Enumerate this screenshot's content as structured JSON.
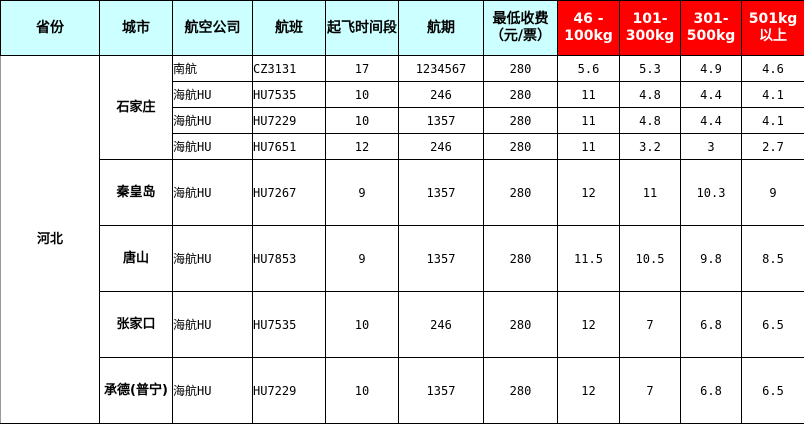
{
  "headers": [
    "省份",
    "城市",
    "航空公司",
    "航班",
    "起飞时间段",
    "航期",
    "最低收费（元/票）",
    "46 - 100kg",
    "101-300kg",
    "301-500kg",
    "501kg以上"
  ],
  "header_colors": {
    "normal": "#ccffff",
    "weight": "#ff0000"
  },
  "province": "河北",
  "cities": [
    {
      "name": "石家庄",
      "flights": [
        [
          "南航",
          "CZ3131",
          "17",
          "1234567",
          "280",
          "5.6",
          "5.3",
          "4.9",
          "4.6"
        ],
        [
          "海航HU",
          "HU7535",
          "10",
          "246",
          "280",
          "11",
          "4.8",
          "4.4",
          "4.1"
        ],
        [
          "海航HU",
          "HU7229",
          "10",
          "1357",
          "280",
          "11",
          "4.8",
          "4.4",
          "4.1"
        ],
        [
          "海航HU",
          "HU7651",
          "12",
          "246",
          "280",
          "11",
          "3.2",
          "3",
          "2.7"
        ]
      ]
    },
    {
      "name": "秦皇岛",
      "flights": [
        [
          "海航HU",
          "HU7267",
          "9",
          "1357",
          "280",
          "12",
          "11",
          "10.3",
          "9"
        ]
      ]
    },
    {
      "name": "唐山",
      "flights": [
        [
          "海航HU",
          "HU7853",
          "9",
          "1357",
          "280",
          "11.5",
          "10.5",
          "9.8",
          "8.5"
        ]
      ]
    },
    {
      "name": "张家口",
      "flights": [
        [
          "海航HU",
          "HU7535",
          "10",
          "246",
          "280",
          "12",
          "7",
          "6.8",
          "6.5"
        ]
      ]
    },
    {
      "name": "承德(普宁)",
      "flights": [
        [
          "海航HU",
          "HU7229",
          "10",
          "1357",
          "280",
          "12",
          "7",
          "6.8",
          "6.5"
        ]
      ]
    }
  ]
}
